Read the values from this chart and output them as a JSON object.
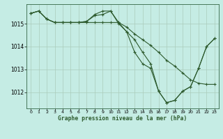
{
  "title": "Graphe pression niveau de la mer (hPa)",
  "background_color": "#c5ece4",
  "grid_color_major": "#aaccbb",
  "grid_color_minor": "#ddeeee",
  "line_color": "#2d5a2d",
  "x_ticks": [
    0,
    1,
    2,
    3,
    4,
    5,
    6,
    7,
    8,
    9,
    10,
    11,
    12,
    13,
    14,
    15,
    16,
    17,
    18,
    19,
    20,
    21,
    22,
    23
  ],
  "y_ticks": [
    1012,
    1013,
    1014,
    1015
  ],
  "ylim": [
    1011.3,
    1015.85
  ],
  "xlim": [
    -0.5,
    23.5
  ],
  "series": {
    "line1": [
      1015.45,
      1015.55,
      1015.2,
      1015.05,
      1015.05,
      1015.05,
      1015.05,
      1015.1,
      1015.35,
      1015.4,
      1015.55,
      1015.0,
      1014.65,
      1014.3,
      1013.75,
      1013.25,
      1012.05,
      1011.55,
      1011.65,
      1012.05,
      1012.25,
      1013.05,
      1014.0,
      1014.35
    ],
    "line2": [
      1015.45,
      1015.55,
      1015.2,
      1015.05,
      1015.05,
      1015.05,
      1015.05,
      1015.05,
      1015.05,
      1015.05,
      1015.05,
      1015.05,
      1014.85,
      1014.55,
      1014.3,
      1014.05,
      1013.75,
      1013.4,
      1013.15,
      1012.85,
      1012.55,
      1012.4,
      1012.35,
      1012.35
    ],
    "line3": [
      1015.45,
      1015.55,
      1015.2,
      1015.05,
      1015.05,
      1015.05,
      1015.05,
      1015.1,
      1015.4,
      1015.55,
      1015.55,
      1015.05,
      1014.65,
      1013.75,
      1013.25,
      1013.05,
      1012.05,
      1011.55,
      1011.65,
      1012.05,
      1012.25,
      1013.05,
      1014.0,
      1014.35
    ]
  }
}
